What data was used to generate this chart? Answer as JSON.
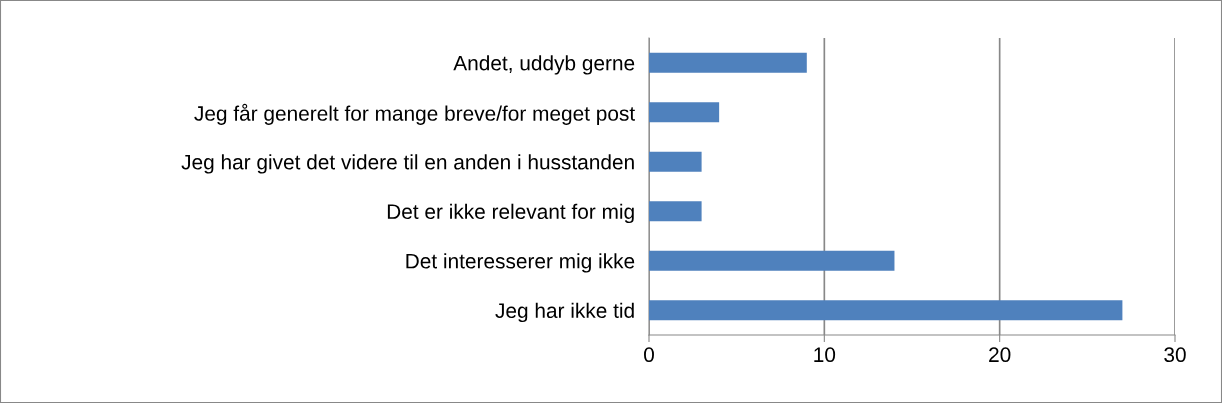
{
  "chart_data": {
    "type": "bar",
    "orientation": "horizontal",
    "categories": [
      "Andet, uddyb gerne",
      "Jeg får generelt for mange breve/for meget post",
      "Jeg har givet det videre til en anden i husstanden",
      "Det er ikke relevant for mig",
      "Det interesserer mig ikke",
      "Jeg har ikke tid"
    ],
    "values": [
      9,
      4,
      3,
      3,
      14,
      27
    ],
    "color": "#4f81bd",
    "xlim": [
      0,
      30
    ],
    "xticks": [
      0,
      10,
      20,
      30
    ],
    "grid": "x"
  }
}
